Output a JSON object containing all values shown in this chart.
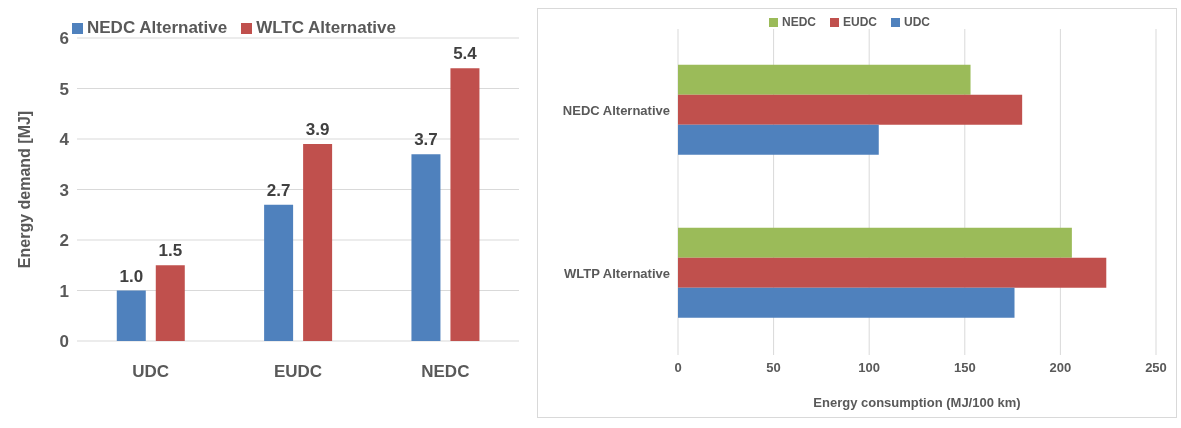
{
  "chart_data": [
    {
      "type": "bar",
      "ylabel": "Energy demand [MJ]",
      "categories": [
        "UDC",
        "EUDC",
        "NEDC"
      ],
      "series": [
        {
          "name": "NEDC Alternative",
          "color": "#4f81bd",
          "values": [
            1.0,
            2.7,
            3.7
          ],
          "value_labels": [
            "1.0",
            "2.7",
            "3.7"
          ]
        },
        {
          "name": "WLTC Alternative",
          "color": "#c0504d",
          "values": [
            1.5,
            3.9,
            5.4
          ],
          "value_labels": [
            "1.5",
            "3.9",
            "5.4"
          ]
        }
      ],
      "ylim": [
        0,
        6
      ],
      "yticks": [
        0,
        1,
        2,
        3,
        4,
        5,
        6
      ],
      "grid": "y",
      "legend": "top left"
    },
    {
      "type": "bar",
      "orientation": "horizontal",
      "xlabel": "Energy consumption (MJ/100 km)",
      "categories": [
        "NEDC Alternative",
        "WLTP Alternative"
      ],
      "series": [
        {
          "name": "NEDC",
          "color": "#9bbb59",
          "values": [
            153,
            206
          ]
        },
        {
          "name": "EUDC",
          "color": "#c0504d",
          "values": [
            180,
            224
          ]
        },
        {
          "name": "UDC",
          "color": "#4f81bd",
          "values": [
            105,
            176
          ]
        }
      ],
      "xlim": [
        0,
        250
      ],
      "xticks": [
        0,
        50,
        100,
        150,
        200,
        250
      ],
      "grid": "x",
      "legend": "top"
    }
  ]
}
